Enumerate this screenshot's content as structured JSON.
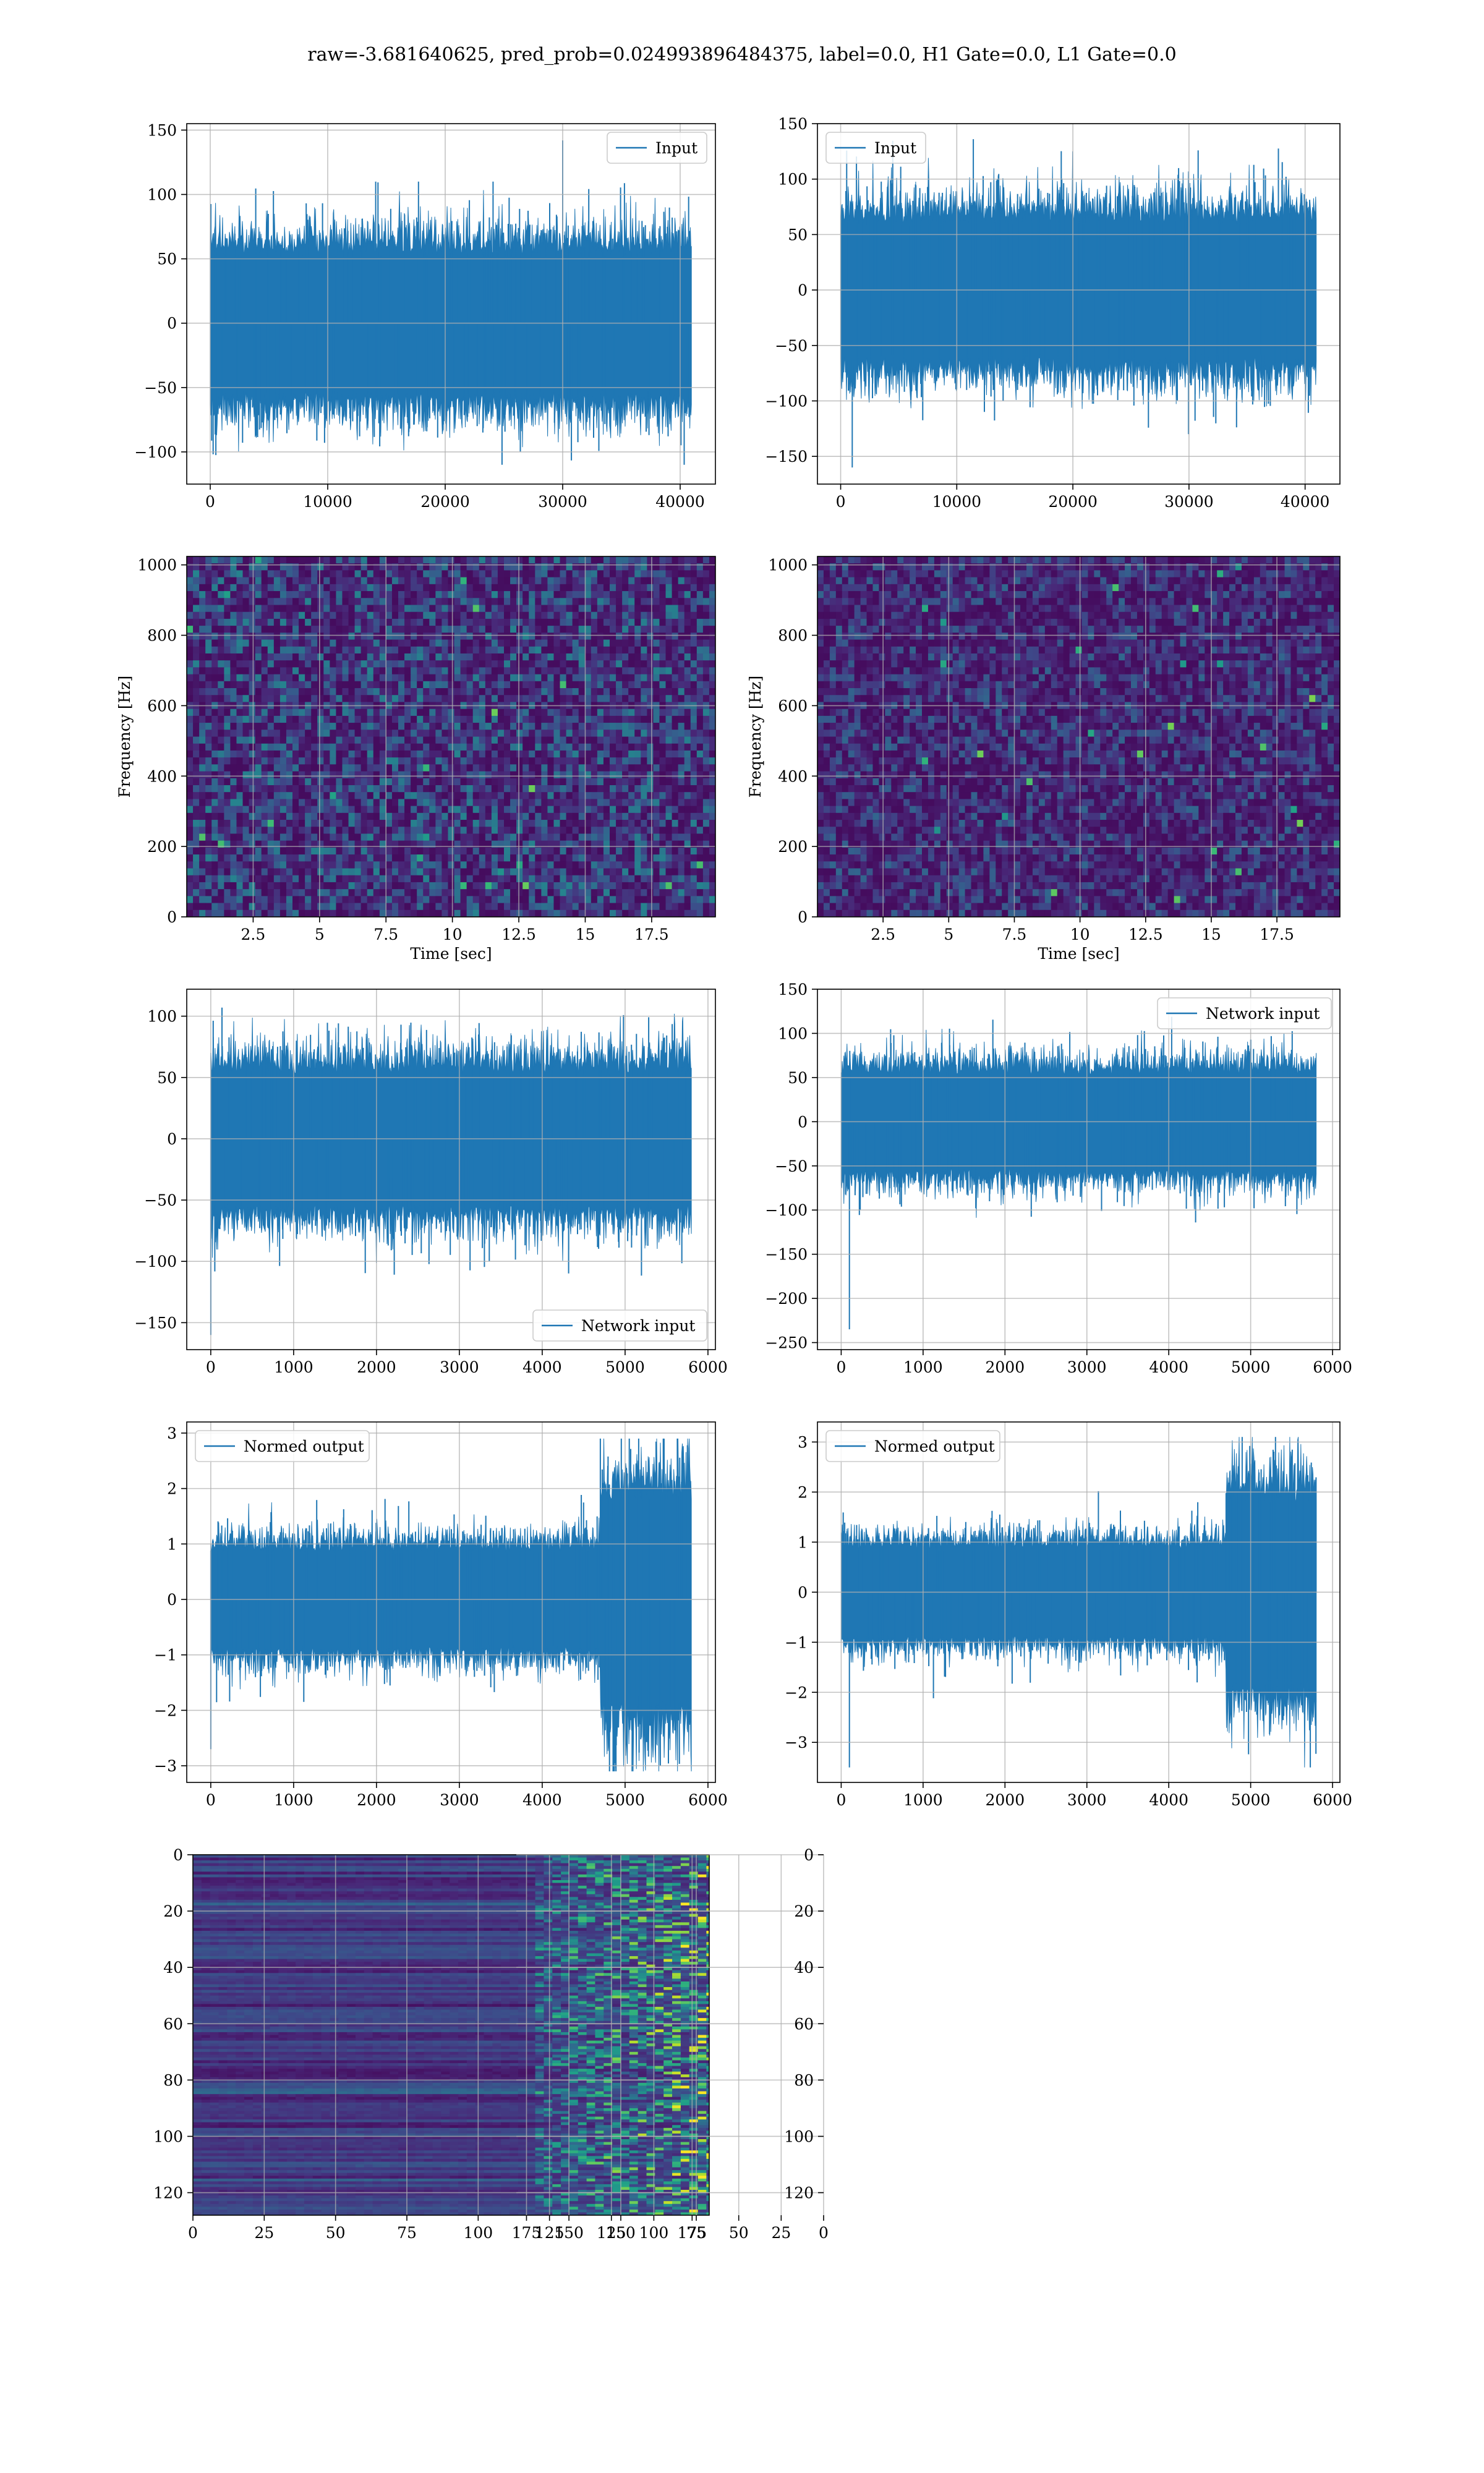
{
  "suptitle": "raw=-3.681640625, pred_prob=0.024993896484375, label=0.0, H1 Gate=0.0, L1 Gate=0.0",
  "colors": {
    "line": "#1f77b4",
    "grid": "#b0b0b0",
    "viridis": [
      "#440154",
      "#482878",
      "#3e4989",
      "#31688e",
      "#26828e",
      "#1f9e89",
      "#35b779",
      "#6ece58",
      "#b5de2b",
      "#fde725"
    ]
  },
  "chart_data": [
    {
      "type": "line",
      "panel": "r1-left",
      "legend": [
        "Input"
      ],
      "legend_loc": "upper right",
      "xlim": [
        -2000,
        43000
      ],
      "ylim": [
        -125,
        155
      ],
      "xticks": [
        0,
        10000,
        20000,
        30000,
        40000
      ],
      "yticks": [
        -100,
        -50,
        0,
        50,
        100,
        150
      ],
      "x_range": [
        0,
        40960
      ],
      "noise_std": 28,
      "env_min": [
        -100,
        -110
      ],
      "env_max": [
        100,
        110
      ],
      "peak": {
        "x": 30000,
        "y": 142
      }
    },
    {
      "type": "line",
      "panel": "r1-right",
      "legend": [
        "Input"
      ],
      "legend_loc": "upper left",
      "xlim": [
        -2000,
        43000
      ],
      "ylim": [
        -175,
        150
      ],
      "xticks": [
        0,
        10000,
        20000,
        30000,
        40000
      ],
      "yticks": [
        -150,
        -100,
        -50,
        0,
        50,
        100,
        150
      ],
      "x_range": [
        0,
        40960
      ],
      "noise_std": 32,
      "env_min": [
        -130,
        -160
      ],
      "env_max": [
        110,
        136
      ],
      "peak": {
        "x": 1000,
        "y": -160
      }
    },
    {
      "type": "heatmap",
      "panel": "r2-left",
      "xlabel": "Time [sec]",
      "ylabel": "Frequency [Hz]",
      "xlim": [
        0,
        19.9
      ],
      "ylim": [
        0,
        1024
      ],
      "xticks": [
        2.5,
        5.0,
        7.5,
        10.0,
        12.5,
        15.0,
        17.5
      ],
      "yticks": [
        0,
        200,
        400,
        600,
        800,
        1000
      ],
      "intensity": 0.42
    },
    {
      "type": "heatmap",
      "panel": "r2-right",
      "xlabel": "Time [sec]",
      "ylabel": "Frequency [Hz]",
      "xlim": [
        0,
        19.9
      ],
      "ylim": [
        0,
        1024
      ],
      "xticks": [
        2.5,
        5.0,
        7.5,
        10.0,
        12.5,
        15.0,
        17.5
      ],
      "yticks": [
        0,
        200,
        400,
        600,
        800,
        1000
      ],
      "intensity": 0.3
    },
    {
      "type": "line",
      "panel": "r3-left",
      "legend": [
        "Network input"
      ],
      "legend_loc": "lower right",
      "xlim": [
        -290,
        6090
      ],
      "ylim": [
        -172,
        122
      ],
      "xticks": [
        0,
        1000,
        2000,
        3000,
        4000,
        5000,
        6000
      ],
      "yticks": [
        -150,
        -100,
        -50,
        0,
        50,
        100
      ],
      "x_range": [
        0,
        5800
      ],
      "noise_std": 28,
      "env_min": [
        -100,
        -113
      ],
      "env_max": [
        100,
        107
      ],
      "peak": {
        "x": 0,
        "y": -160
      }
    },
    {
      "type": "line",
      "panel": "r3-right",
      "legend": [
        "Network input"
      ],
      "legend_loc": "upper right",
      "xlim": [
        -290,
        6090
      ],
      "ylim": [
        -258,
        150
      ],
      "xticks": [
        0,
        1000,
        2000,
        3000,
        4000,
        5000,
        6000
      ],
      "yticks": [
        -250,
        -200,
        -150,
        -100,
        -50,
        0,
        50,
        100,
        150
      ],
      "x_range": [
        0,
        5800
      ],
      "noise_std": 28,
      "env_min": [
        -100,
        -120
      ],
      "env_max": [
        100,
        130
      ],
      "peak": {
        "x": 100,
        "y": -235
      }
    },
    {
      "type": "line",
      "panel": "r4-left",
      "legend": [
        "Normed output"
      ],
      "legend_loc": "upper left",
      "xlim": [
        -290,
        6090
      ],
      "ylim": [
        -3.3,
        3.2
      ],
      "xticks": [
        0,
        1000,
        2000,
        3000,
        4000,
        5000,
        6000
      ],
      "yticks": [
        -3,
        -2,
        -1,
        0,
        1,
        2,
        3
      ],
      "x_range": [
        0,
        5800
      ],
      "noise_std": 0.45,
      "burst": {
        "from": 4700,
        "to": 5800,
        "std": 0.95
      },
      "env_min": [
        -2.5,
        -3.1
      ],
      "env_max": [
        2.5,
        2.9
      ],
      "peak": {
        "x": 0,
        "y": -2.7
      }
    },
    {
      "type": "line",
      "panel": "r4-right",
      "legend": [
        "Normed output"
      ],
      "legend_loc": "upper left",
      "xlim": [
        -290,
        6090
      ],
      "ylim": [
        -3.8,
        3.4
      ],
      "xticks": [
        0,
        1000,
        2000,
        3000,
        4000,
        5000,
        6000
      ],
      "yticks": [
        -3,
        -2,
        -1,
        0,
        1,
        2,
        3
      ],
      "x_range": [
        0,
        5800
      ],
      "noise_std": 0.45,
      "burst": {
        "from": 4700,
        "to": 5800,
        "std": 0.95
      },
      "env_min": [
        -2.5,
        -3.5
      ],
      "env_max": [
        2.5,
        3.1
      ],
      "peak": {
        "x": 100,
        "y": -3.5
      }
    },
    {
      "type": "heatmap",
      "panel": "r5-left",
      "xlabel": "",
      "ylabel": "",
      "xlim": [
        0,
        181
      ],
      "ylim": [
        128,
        0
      ],
      "xticks": [
        0,
        25,
        50,
        75,
        100,
        125,
        150,
        175
      ],
      "yticks": [
        0,
        20,
        40,
        60,
        80,
        100,
        120
      ],
      "activation_from": 120
    },
    {
      "type": "heatmap",
      "panel": "r5-right",
      "xlabel": "",
      "ylabel": "",
      "xlim": [
        0,
        181
      ],
      "ylim": [
        128,
        0
      ],
      "xticks": [
        0,
        25,
        50,
        75,
        100,
        125,
        150,
        175
      ],
      "yticks": [
        0,
        20,
        40,
        60,
        80,
        100,
        120
      ],
      "activation_from": 120
    }
  ]
}
